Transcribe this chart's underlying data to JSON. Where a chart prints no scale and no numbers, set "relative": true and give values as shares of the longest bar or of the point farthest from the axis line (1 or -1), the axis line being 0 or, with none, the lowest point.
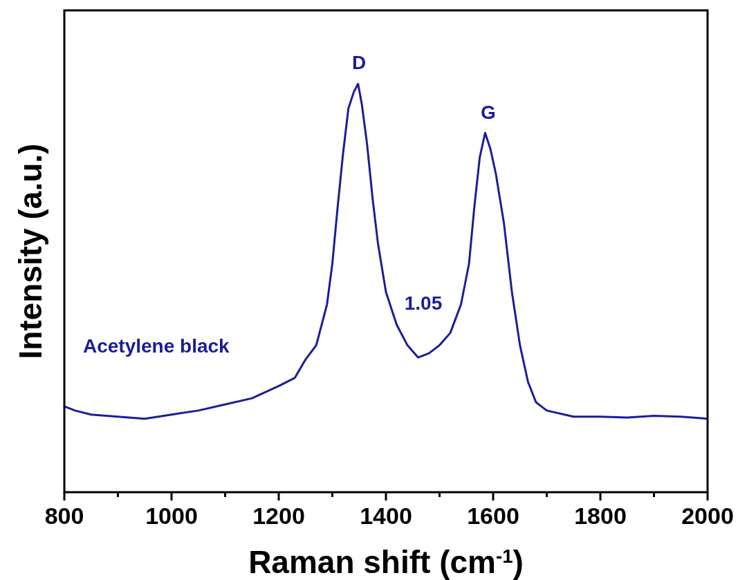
{
  "chart_data": {
    "type": "line",
    "relative": true,
    "xlabel": "Raman shift (cm$^{-1}$)",
    "ylabel": "Intensity (a.u.)",
    "xlim": [
      800,
      2000
    ],
    "xticks": [
      800,
      {
        "value": 900,
        "label": null
      },
      1000,
      {
        "value": 1100,
        "label": null
      },
      1200,
      {
        "value": 1300,
        "label": null
      },
      1400,
      {
        "value": 1500,
        "label": null
      },
      1600,
      {
        "value": 1700,
        "label": null
      },
      1800,
      {
        "value": 1900,
        "label": null
      },
      2000
    ],
    "annotations": [
      "D",
      "G",
      "1.05",
      "Acetylene black"
    ],
    "series": [
      {
        "color": "#1c1c99",
        "x": [
          800,
          820,
          850,
          900,
          950,
          1000,
          1050,
          1100,
          1150,
          1200,
          1230,
          1250,
          1270,
          1290,
          1300,
          1310,
          1320,
          1330,
          1340,
          1348,
          1355,
          1365,
          1375,
          1385,
          1400,
          1420,
          1440,
          1460,
          1480,
          1500,
          1520,
          1540,
          1555,
          1565,
          1575,
          1585,
          1595,
          1605,
          1620,
          1635,
          1650,
          1665,
          1680,
          1700,
          1750,
          1800,
          1850,
          1900,
          1950,
          2000
        ],
        "values": [
          0.21,
          0.2,
          0.19,
          0.185,
          0.18,
          0.19,
          0.2,
          0.215,
          0.23,
          0.26,
          0.28,
          0.325,
          0.36,
          0.46,
          0.56,
          0.7,
          0.83,
          0.94,
          0.98,
          1,
          0.95,
          0.85,
          0.72,
          0.61,
          0.49,
          0.41,
          0.36,
          0.33,
          0.34,
          0.36,
          0.39,
          0.46,
          0.56,
          0.7,
          0.82,
          0.88,
          0.84,
          0.78,
          0.66,
          0.49,
          0.36,
          0.27,
          0.22,
          0.2,
          0.185,
          0.185,
          0.183,
          0.187,
          0.185,
          0.18
        ]
      }
    ]
  }
}
